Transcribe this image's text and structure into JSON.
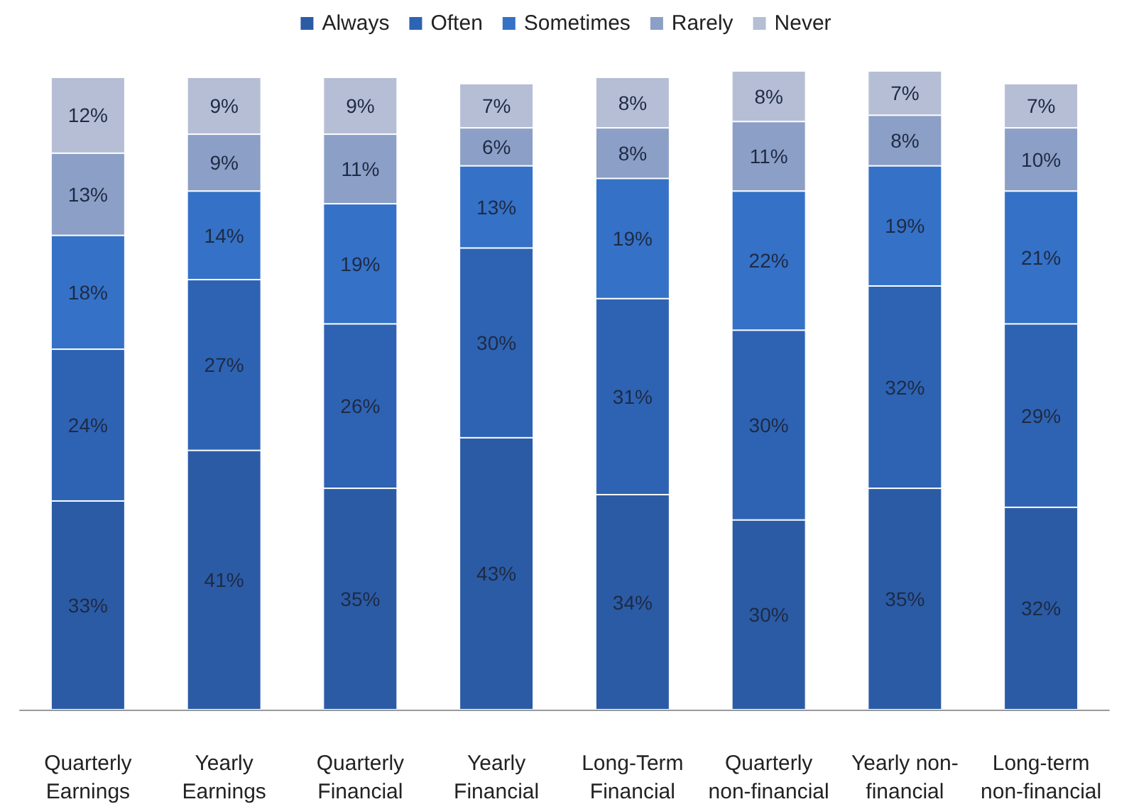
{
  "chart_data": {
    "type": "bar",
    "stacked": true,
    "legend": "top",
    "categories": [
      "Quarterly\nEarnings",
      "Yearly\nEarnings",
      "Quarterly\nFinancial",
      "Yearly\nFinancial",
      "Long-Term\nFinancial",
      "Quarterly\nnon-financial",
      "Yearly non-\nfinancial",
      "Long-term\nnon-financial"
    ],
    "series": [
      {
        "name": "Always",
        "color": "#2b5ba5",
        "values": [
          33,
          41,
          35,
          43,
          34,
          30,
          35,
          32
        ],
        "value_labels": [
          "33%",
          "41%",
          "35%",
          "43%",
          "34%",
          "30%",
          "35%",
          "32%"
        ]
      },
      {
        "name": "Often",
        "color": "#2e63b3",
        "values": [
          24,
          27,
          26,
          30,
          31,
          30,
          32,
          29
        ],
        "value_labels": [
          "24%",
          "27%",
          "26%",
          "30%",
          "31%",
          "30%",
          "32%",
          "29%"
        ]
      },
      {
        "name": "Sometimes",
        "color": "#3571c6",
        "values": [
          18,
          14,
          19,
          13,
          19,
          22,
          19,
          21
        ],
        "value_labels": [
          "18%",
          "14%",
          "19%",
          "13%",
          "19%",
          "22%",
          "19%",
          "21%"
        ]
      },
      {
        "name": "Rarely",
        "color": "#8c9fc6",
        "values": [
          13,
          9,
          11,
          6,
          8,
          11,
          8,
          10
        ],
        "value_labels": [
          "13%",
          "9%",
          "11%",
          "6%",
          "8%",
          "11%",
          "8%",
          "10%"
        ]
      },
      {
        "name": "Never",
        "color": "#b5bed4",
        "values": [
          12,
          9,
          9,
          7,
          8,
          8,
          7,
          7
        ],
        "value_labels": [
          "12%",
          "9%",
          "9%",
          "7%",
          "8%",
          "8%",
          "7%",
          "7%"
        ]
      }
    ]
  }
}
